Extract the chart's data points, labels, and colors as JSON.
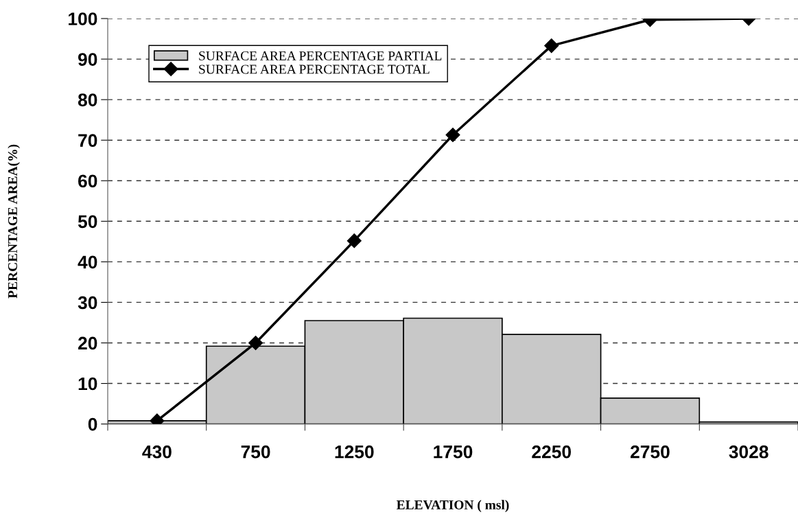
{
  "chart_data": {
    "type": "bar",
    "xlabel": "ELEVATION ( msl)",
    "ylabel": "PERCENTAGE AREA(%)",
    "categories": [
      "430",
      "750",
      "1250",
      "1750",
      "2250",
      "2750",
      "3028"
    ],
    "series": [
      {
        "name": "SURFACE AREA PERCENTAGE PARTIAL",
        "color": "#c8c8c8",
        "values": [
          0.8,
          19.2,
          25.5,
          26.1,
          22.1,
          6.4,
          0.5
        ]
      },
      {
        "name": "SURFACE AREA PERCENTAGE TOTAL",
        "type": "line",
        "color": "#000000",
        "values": [
          0.8,
          20.0,
          45.2,
          71.3,
          93.3,
          99.7,
          100
        ]
      }
    ],
    "ylim": [
      0,
      100
    ],
    "yticks": [
      0,
      10,
      20,
      30,
      40,
      50,
      60,
      70,
      80,
      90,
      100
    ],
    "grid": "y",
    "legend": "top left",
    "marker": "diamond",
    "line_style": "solid"
  }
}
